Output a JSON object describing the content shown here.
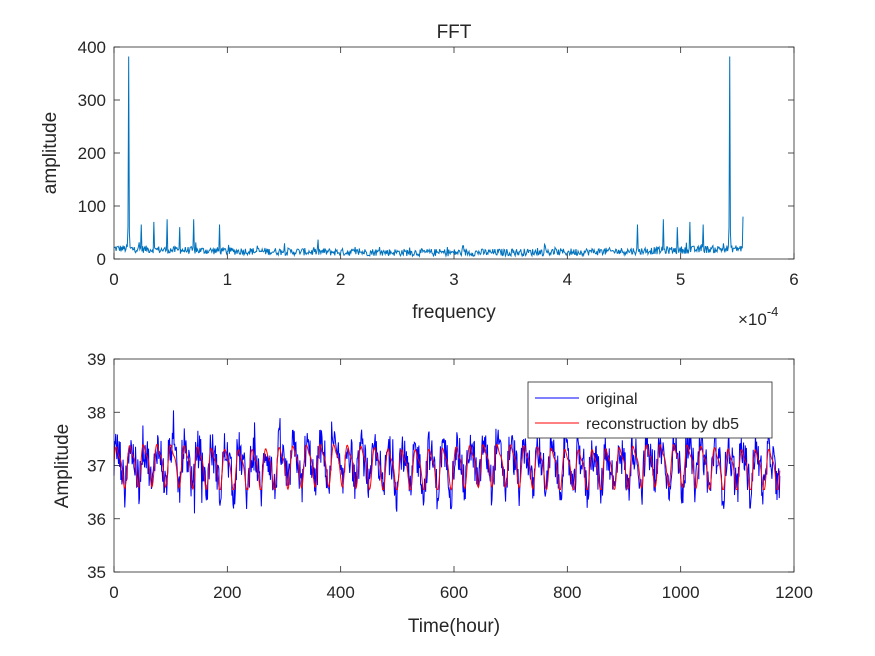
{
  "chart_data": [
    {
      "type": "line",
      "title": "FFT",
      "xlabel": "frequency",
      "ylabel": "amplitude",
      "x_exponent_label": "×10",
      "x_exponent_power": "-4",
      "xlim": [
        0,
        6
      ],
      "ylim": [
        0,
        400
      ],
      "xticks": [
        0,
        1,
        2,
        3,
        4,
        5,
        6
      ],
      "yticks": [
        0,
        100,
        200,
        300,
        400
      ],
      "x_range_of_data": [
        0,
        5.55
      ],
      "series": [
        {
          "color": "#0072BD",
          "baseline_approx": [
            {
              "x": 0.0,
              "y": 20
            },
            {
              "x": 0.5,
              "y": 17
            },
            {
              "x": 1.0,
              "y": 15
            },
            {
              "x": 2.0,
              "y": 13
            },
            {
              "x": 3.0,
              "y": 12
            },
            {
              "x": 4.0,
              "y": 13
            },
            {
              "x": 4.6,
              "y": 15
            },
            {
              "x": 5.2,
              "y": 18
            },
            {
              "x": 5.55,
              "y": 20
            }
          ],
          "peaks": [
            {
              "x": 0.13,
              "y": 382
            },
            {
              "x": 0.24,
              "y": 65
            },
            {
              "x": 0.35,
              "y": 70
            },
            {
              "x": 0.47,
              "y": 75
            },
            {
              "x": 0.58,
              "y": 60
            },
            {
              "x": 0.7,
              "y": 75
            },
            {
              "x": 0.93,
              "y": 65
            },
            {
              "x": 4.62,
              "y": 65
            },
            {
              "x": 4.85,
              "y": 75
            },
            {
              "x": 4.97,
              "y": 60
            },
            {
              "x": 5.08,
              "y": 70
            },
            {
              "x": 5.2,
              "y": 65
            },
            {
              "x": 5.43,
              "y": 382
            },
            {
              "x": 5.55,
              "y": 80
            }
          ]
        }
      ]
    },
    {
      "type": "line",
      "title": "",
      "xlabel": "Time(hour)",
      "ylabel": "Amplitude",
      "xlim": [
        0,
        1200
      ],
      "ylim": [
        35,
        39
      ],
      "xticks": [
        0,
        200,
        400,
        600,
        800,
        1000,
        1200
      ],
      "yticks": [
        35,
        36,
        37,
        38,
        39
      ],
      "legend_position": "top-right",
      "series": [
        {
          "name": "original",
          "color": "#0000FF",
          "mean": 37.0,
          "range": [
            35.9,
            38.4
          ],
          "x_range": [
            0,
            1175
          ]
        },
        {
          "name": "reconstruction by db5",
          "color": "#FF0000",
          "mean": 37.0,
          "range": [
            36.55,
            37.6
          ],
          "x_range": [
            0,
            1175
          ]
        }
      ]
    }
  ]
}
